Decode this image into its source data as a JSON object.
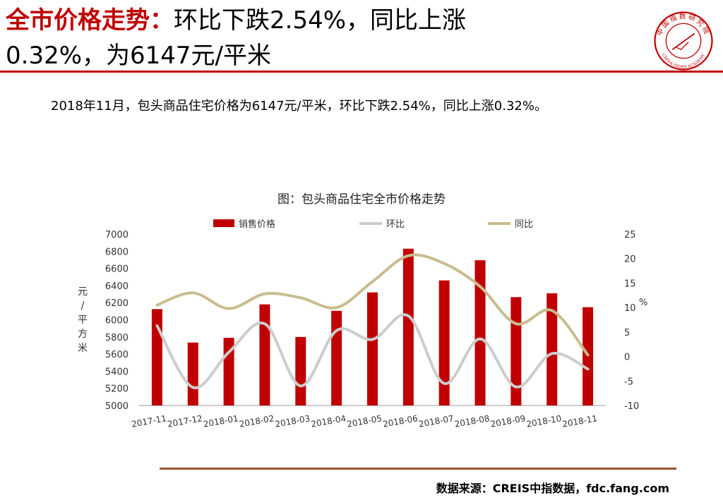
{
  "header": {
    "title_highlight": "全市价格走势：",
    "title_rest_line1": "环比下跌2.54%，同比上涨",
    "title_line2": "0.32%，为6147元/平米"
  },
  "logo": {
    "name": "中国指数研究院",
    "english": "CHINA INDEX ACADEMY"
  },
  "summary": "2018年11月，包头商品住宅价格为6147元/平米，环比下跌2.54%，同比上涨0.32%。",
  "source": "数据来源：CREIS中指数据，fdc.fang.com",
  "colors": {
    "accent": "#c00000",
    "bar": "#c00000",
    "mom": "#cccccc",
    "yoy": "#c9bd8e",
    "source_rule": "#a0522d"
  },
  "chart_data": {
    "type": "bar",
    "title": "图：包头商品住宅全市价格走势",
    "categories": [
      "2017-11",
      "2017-12",
      "2018-01",
      "2018-02",
      "2018-03",
      "2018-04",
      "2018-05",
      "2018-06",
      "2018-07",
      "2018-08",
      "2018-09",
      "2018-10",
      "2018-11"
    ],
    "ylabel": "元/平方米",
    "ylabel_chars": [
      "元",
      "/",
      "平",
      "方",
      "米"
    ],
    "y2label": "%",
    "ylim": [
      5000,
      7000
    ],
    "yticks": [
      "5000",
      "5200",
      "5400",
      "5600",
      "5800",
      "6000",
      "6200",
      "6400",
      "6600",
      "6800",
      "7000"
    ],
    "y2lim": [
      -10,
      25
    ],
    "y2ticks": [
      "-10",
      "-5",
      "0",
      "5",
      "10",
      "15",
      "20",
      "25"
    ],
    "series": [
      {
        "name": "销售价格",
        "type": "bar",
        "axis": "left",
        "values": [
          6125,
          5735,
          5790,
          6180,
          5800,
          6105,
          6320,
          6830,
          6460,
          6695,
          6265,
          6310,
          6147
        ]
      },
      {
        "name": "环比",
        "type": "line",
        "axis": "right",
        "values": [
          6.3,
          -6.3,
          0.9,
          6.7,
          -6.0,
          5.3,
          3.5,
          8.3,
          -5.5,
          3.6,
          -6.2,
          0.6,
          -2.54
        ]
      },
      {
        "name": "同比",
        "type": "line",
        "axis": "right",
        "values": [
          10.5,
          13.0,
          9.8,
          12.8,
          12.0,
          10.0,
          15.3,
          20.6,
          19.0,
          14.3,
          6.7,
          9.4,
          0.32
        ]
      }
    ]
  }
}
